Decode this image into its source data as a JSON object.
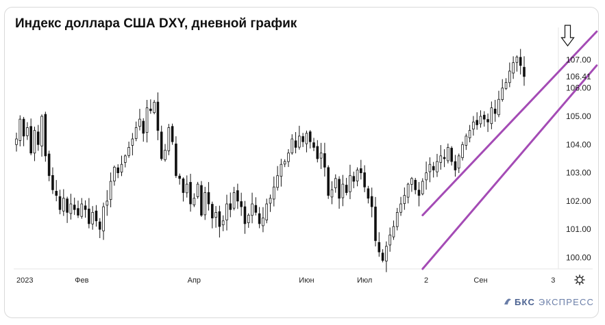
{
  "title": "Индекс доллара США DXY, дневной график",
  "brand": {
    "strong": "БКС",
    "rest": " ЭКСПРЕСС"
  },
  "icons": {
    "settings": "gear-icon",
    "marker": "arrow-down-icon",
    "logo": "bks-logo-icon"
  },
  "chart_data": {
    "type": "candlestick",
    "title": "Индекс доллара США DXY, дневной график",
    "x_tick_labels": [
      "2023",
      "Фев",
      "Апр",
      "Июн",
      "Июл",
      "2",
      "Сен",
      "3"
    ],
    "y_tick_labels": [
      "100.00",
      "101.00",
      "102.00",
      "103.00",
      "104.00",
      "105.00",
      "106.00",
      "107.00"
    ],
    "last_price_label": "106.41",
    "ylim": [
      99.6,
      108.1
    ],
    "grid": false,
    "series": [
      {
        "values": [
          104.2,
          104.9,
          104.3,
          104.6,
          103.7,
          104.5,
          104.0,
          105.0,
          103.6,
          102.9,
          102.4,
          102.2,
          101.7,
          102.1,
          101.6,
          101.9,
          101.7,
          101.5,
          101.9,
          101.7,
          101.2,
          101.6,
          101.3,
          101.0,
          101.8,
          102.0,
          102.7,
          103.2,
          103.0,
          103.3,
          103.6,
          103.9,
          104.2,
          104.6,
          104.9,
          104.4,
          105.3,
          105.2,
          105.5,
          104.5,
          103.5,
          103.8,
          104.6,
          104.1,
          102.9,
          102.8,
          102.3,
          102.6,
          101.9,
          102.1,
          102.6,
          101.5,
          102.3,
          101.9,
          101.4,
          101.6,
          101.1,
          101.3,
          101.9,
          101.7,
          102.3,
          102.0,
          101.8,
          101.2,
          101.5,
          101.9,
          101.6,
          101.2,
          101.4,
          101.9,
          102.1,
          102.5,
          102.9,
          103.3,
          103.4,
          103.7,
          104.2,
          103.9,
          104.3,
          104.1,
          104.4,
          104.1,
          103.9,
          103.5,
          103.7,
          103.2,
          102.2,
          102.4,
          102.8,
          102.1,
          102.6,
          102.3,
          102.9,
          102.7,
          103.1,
          103.0,
          102.5,
          102.1,
          101.8,
          100.6,
          100.2,
          99.9,
          100.4,
          100.8,
          101.1,
          101.6,
          101.9,
          102.2,
          102.6,
          102.8,
          102.4,
          102.2,
          102.7,
          103.0,
          103.3,
          103.1,
          103.4,
          103.6,
          103.5,
          103.9,
          103.4,
          103.1,
          103.6,
          104.0,
          104.3,
          104.5,
          104.8,
          104.7,
          105.0,
          104.9,
          104.8,
          105.3,
          105.1,
          105.6,
          106.0,
          106.2,
          106.6,
          106.9,
          107.1,
          106.8,
          106.41
        ]
      }
    ],
    "annotations": [
      {
        "type": "channel-upper-line",
        "from": {
          "x_index": 112,
          "y": 101.5
        },
        "to": {
          "x_index": 160,
          "y": 108.0
        }
      },
      {
        "type": "channel-lower-line",
        "from": {
          "x_index": 112,
          "y": 99.6
        },
        "to": {
          "x_index": 160,
          "y": 106.8
        }
      },
      {
        "type": "arrow-marker",
        "x_index": 152,
        "y": 107.3
      }
    ]
  }
}
